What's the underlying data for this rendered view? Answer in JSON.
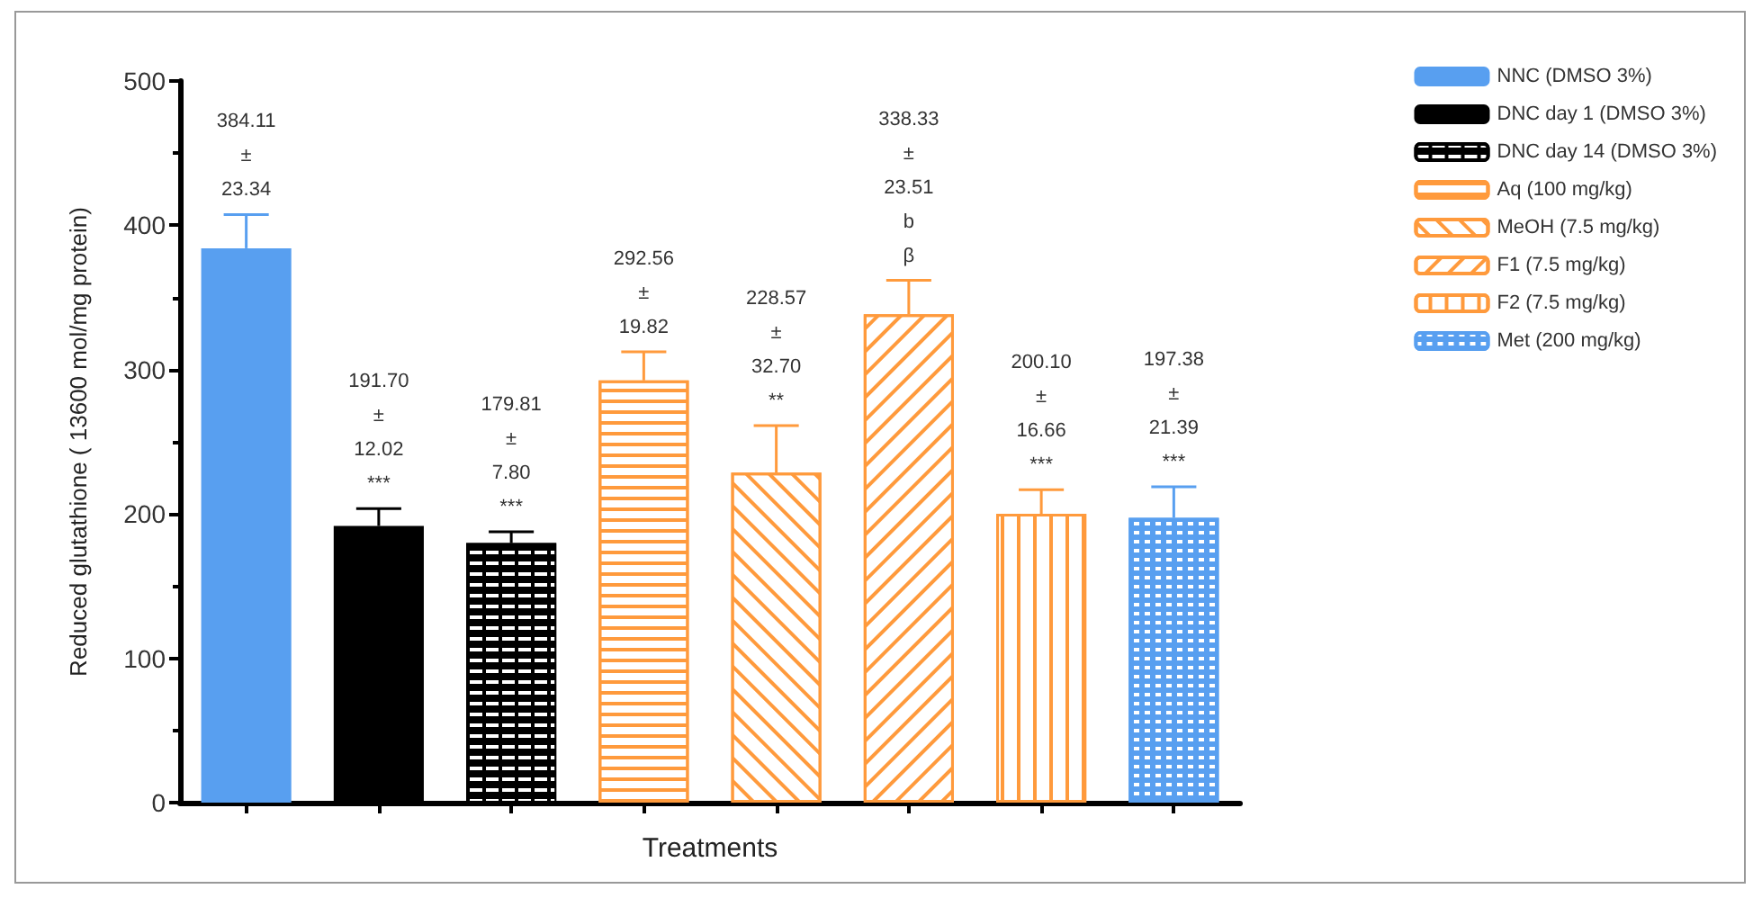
{
  "chart_data": {
    "type": "bar",
    "xlabel": "Treatments",
    "ylabel": "Reduced glutathione ( 13600 mol/mg protein)",
    "categories": [
      null,
      null,
      null,
      null,
      null,
      null,
      null,
      null
    ],
    "stacked": true,
    "series": [
      {
        "name": "NNC (DMSO 3%)",
        "color": "#589ff0",
        "values": [
          384.11,
          null,
          null,
          null,
          null,
          null,
          null,
          null
        ],
        "errors": [
          23.34,
          null,
          null,
          null,
          null,
          null,
          null,
          null
        ],
        "value_labels": [
          "384.11\n±\n23.34",
          null,
          null,
          null,
          null,
          null,
          null,
          null
        ]
      },
      {
        "name": "DNC day 1 (DMSO 3%)",
        "color": "#000000",
        "values": [
          null,
          191.7,
          null,
          null,
          null,
          null,
          null,
          null
        ],
        "errors": [
          null,
          12.02,
          null,
          null,
          null,
          null,
          null,
          null
        ],
        "value_labels": [
          null,
          "191.70\n±\n12.02\n***",
          null,
          null,
          null,
          null,
          null,
          null
        ]
      },
      {
        "name": "DNC day 14 (DMSO 3%)",
        "color": "#000000",
        "values": [
          null,
          null,
          179.81,
          null,
          null,
          null,
          null,
          null
        ],
        "errors": [
          null,
          null,
          7.8,
          null,
          null,
          null,
          null,
          null
        ],
        "value_labels": [
          null,
          null,
          "179.81\n±\n7.80\n***",
          null,
          null,
          null,
          null,
          null
        ]
      },
      {
        "name": "Aq (100 mg/kg)",
        "color": "#ff9a3c",
        "values": [
          null,
          null,
          null,
          292.56,
          null,
          null,
          null,
          null
        ],
        "errors": [
          null,
          null,
          null,
          19.82,
          null,
          null,
          null,
          null
        ],
        "value_labels": [
          null,
          null,
          null,
          "292.56\n±\n19.82",
          null,
          null,
          null,
          null
        ]
      },
      {
        "name": "MeOH (7.5 mg/kg)",
        "color": "#ff9a3c",
        "values": [
          null,
          null,
          null,
          null,
          228.57,
          null,
          null,
          null
        ],
        "errors": [
          null,
          null,
          null,
          null,
          32.7,
          null,
          null,
          null
        ],
        "value_labels": [
          null,
          null,
          null,
          null,
          "228.57\n±\n32.70\n**",
          null,
          null,
          null
        ]
      },
      {
        "name": "F1 (7.5 mg/kg)",
        "color": "#ff9a3c",
        "values": [
          null,
          null,
          null,
          null,
          null,
          338.33,
          null,
          null
        ],
        "errors": [
          null,
          null,
          null,
          null,
          null,
          23.51,
          null,
          null
        ],
        "value_labels": [
          null,
          null,
          null,
          null,
          null,
          "338.33\n±\n23.51\nb\nβ",
          null,
          null
        ]
      },
      {
        "name": "F2 (7.5 mg/kg)",
        "color": "#ff9a3c",
        "values": [
          null,
          null,
          null,
          null,
          null,
          null,
          200.1,
          null
        ],
        "errors": [
          null,
          null,
          null,
          null,
          null,
          null,
          16.66,
          null
        ],
        "value_labels": [
          null,
          null,
          null,
          null,
          null,
          null,
          "200.10\n±\n16.66\n***",
          null
        ]
      },
      {
        "name": "Met (200 mg/kg)",
        "color": "#589ff0",
        "values": [
          null,
          null,
          null,
          null,
          null,
          null,
          null,
          197.38
        ],
        "errors": [
          null,
          null,
          null,
          null,
          null,
          null,
          null,
          21.39
        ],
        "value_labels": [
          null,
          null,
          null,
          null,
          null,
          null,
          null,
          "197.38\n±\n21.39\n***"
        ]
      }
    ],
    "ylim": [
      0,
      500
    ],
    "yticks": [
      0,
      100,
      200,
      300,
      400,
      500
    ],
    "grid": false,
    "legend": "right"
  }
}
